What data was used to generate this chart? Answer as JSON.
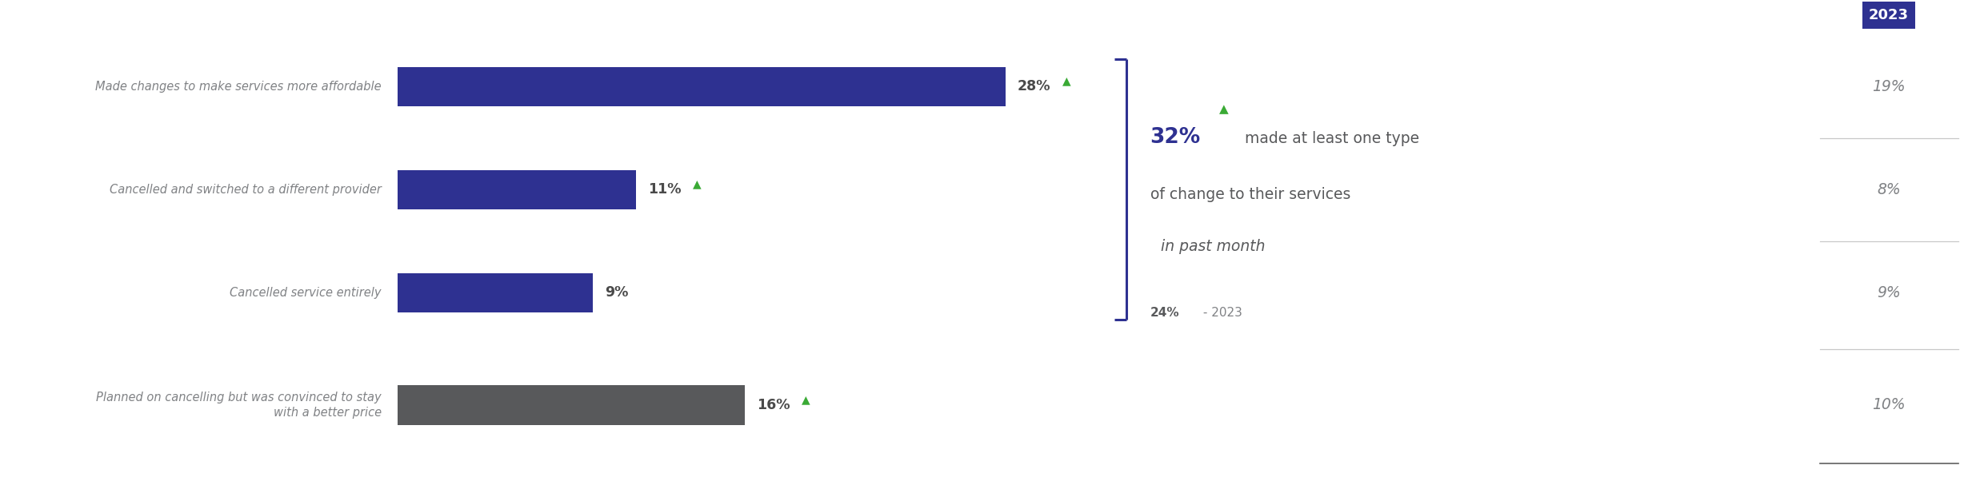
{
  "categories": [
    "Made changes to make services more affordable",
    "Cancelled and switched to a different provider",
    "Cancelled service entirely",
    "Planned on cancelling but was convinced to stay\nwith a better price"
  ],
  "values": [
    28,
    11,
    9,
    16
  ],
  "bar_colors": [
    "#2e3191",
    "#2e3191",
    "#2e3191",
    "#58595b"
  ],
  "value_labels": [
    "28%",
    "11%",
    "9%",
    "16%"
  ],
  "show_arrow": [
    true,
    true,
    false,
    true
  ],
  "right_values": [
    "19%",
    "8%",
    "9%",
    "10%"
  ],
  "right_label": "2023",
  "right_label_bg": "#2e3191",
  "right_label_color": "#ffffff",
  "callout_pct": "32%",
  "callout_text1": "made at least one type",
  "callout_text2": "of change to their services",
  "callout_text3": " in past month",
  "callout_subtext": "24%",
  "callout_subtext2": " - 2023",
  "label_color": "#808285",
  "value_color": "#58595b",
  "arrow_color": "#3aaa35",
  "bracket_color": "#2e3191",
  "background_color": "#ffffff",
  "fig_width": 24.75,
  "fig_height": 6.27
}
